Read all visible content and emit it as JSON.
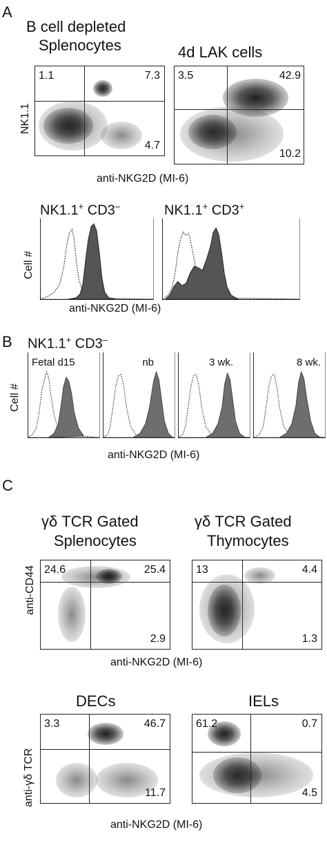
{
  "panelA": {
    "letter": "A",
    "plot1": {
      "title_line1": "B cell depleted",
      "title_line2": "Splenocytes",
      "q_ul": "1.1",
      "q_ur": "7.3",
      "q_lr": "4.7"
    },
    "plot2": {
      "title": "4d LAK cells",
      "q_ul": "3.5",
      "q_ur": "42.9",
      "q_lr": "10.2"
    },
    "ylabel": "NK1.1",
    "xlabel": "anti-NKG2D  (MI-6)",
    "hist1_title_main": "NK1.1",
    "hist1_title_sup1": "+",
    "hist1_title_mid": " CD3",
    "hist1_title_sup2": "–",
    "hist2_title_main": "NK1.1",
    "hist2_title_sup1": "+",
    "hist2_title_mid": " CD3",
    "hist2_title_sup2": "+",
    "hist_ylabel": "Cell #",
    "hist_xlabel": "anti-NKG2D  (MI-6)"
  },
  "panelB": {
    "letter": "B",
    "title_main": "NK1.1",
    "title_sup1": "+",
    "title_mid": " CD3",
    "title_sup2": "–",
    "ylabel": "Cell #",
    "labels": [
      "Fetal d15",
      "nb",
      "3 wk.",
      "8 wk."
    ],
    "xlabel": "anti-NKG2D  (MI-6)"
  },
  "panelC": {
    "letter": "C",
    "plot1": {
      "title_line1": "γδ TCR Gated",
      "title_line2": "Splenocytes",
      "q_ul": "24.6",
      "q_ur": "25.4",
      "q_lr": "2.9"
    },
    "plot2": {
      "title_line1": "γδ TCR Gated",
      "title_line2": "Thymocytes",
      "q_ul": "13",
      "q_ur": "4.4",
      "q_lr": "1.3"
    },
    "ylabel_top": "anti-CD44",
    "xlabel_top": "anti-NKG2D  (MI-6)",
    "plot3": {
      "title": "DECs",
      "q_ul": "3.3",
      "q_ur": "46.7",
      "q_lr": "11.7"
    },
    "plot4": {
      "title": "IELs",
      "q_ul": "61.2",
      "q_ur": "0.7",
      "q_lr": "4.5"
    },
    "ylabel_bottom": "anti-γδ TCR",
    "xlabel_bottom": "anti-NKG2D  (MI-6)"
  }
}
